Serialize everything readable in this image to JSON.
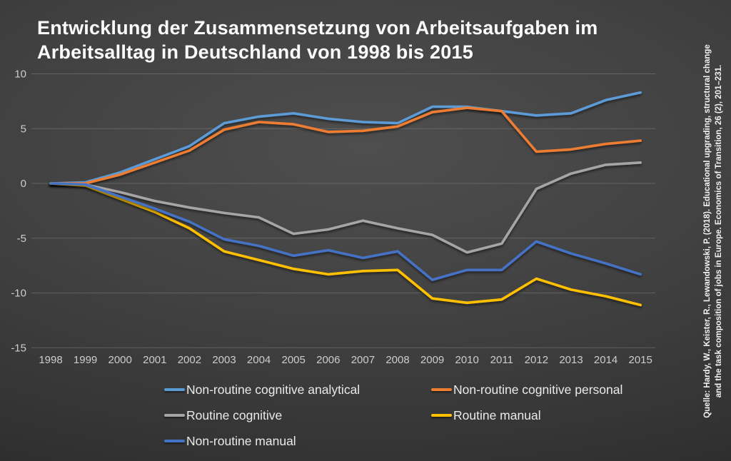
{
  "title": {
    "line1": "Entwicklung der Zusammensetzung von Arbeitsaufgaben im",
    "line2": "Arbeitsalltag in Deutschland von 1998 bis 2015"
  },
  "source": {
    "line1": "Quelle: Hardy, W., Keister, R., Lewandowski, P. (2018). Educational upgrading, structural change",
    "line2": "and the task composition of jobs in Europe. Economics of Transition, 26 (2), 201–231."
  },
  "colors": {
    "background_center": "#4e4e4e",
    "background_edge": "#242424",
    "gridline": "#8a8a8a",
    "tick_label": "#cdcdcd",
    "title_text": "#fbfbfb",
    "legend_text": "#eaeaea"
  },
  "chart_data": {
    "type": "line",
    "x": [
      1998,
      1999,
      2000,
      2001,
      2002,
      2003,
      2004,
      2005,
      2006,
      2007,
      2008,
      2009,
      2010,
      2011,
      2012,
      2013,
      2014,
      2015
    ],
    "series": [
      {
        "name": "Non-routine cognitive analytical",
        "color": "#5B9BD5",
        "values": [
          0.0,
          0.1,
          1.0,
          2.2,
          3.4,
          5.5,
          6.1,
          6.4,
          5.9,
          5.6,
          5.5,
          7.0,
          7.0,
          6.6,
          6.2,
          6.4,
          7.6,
          8.3
        ]
      },
      {
        "name": "Non-routine cognitive personal",
        "color": "#ED7D31",
        "values": [
          0.0,
          0.0,
          0.8,
          1.9,
          3.0,
          4.9,
          5.6,
          5.4,
          4.7,
          4.8,
          5.2,
          6.5,
          6.9,
          6.6,
          2.9,
          3.1,
          3.6,
          3.9
        ]
      },
      {
        "name": "Routine cognitive",
        "color": "#A5A5A5",
        "values": [
          0.0,
          -0.1,
          -0.8,
          -1.6,
          -2.2,
          -2.7,
          -3.1,
          -4.6,
          -4.2,
          -3.4,
          -4.1,
          -4.7,
          -6.3,
          -5.5,
          -0.5,
          0.9,
          1.7,
          1.9
        ]
      },
      {
        "name": "Routine manual",
        "color": "#FFC000",
        "values": [
          0.0,
          -0.2,
          -1.4,
          -2.6,
          -4.1,
          -6.2,
          -7.0,
          -7.8,
          -8.3,
          -8.0,
          -7.9,
          -10.5,
          -10.9,
          -10.6,
          -8.7,
          -9.7,
          -10.3,
          -11.1
        ]
      },
      {
        "name": "Non-routine manual",
        "color": "#4472C4",
        "values": [
          0.0,
          -0.1,
          -1.2,
          -2.3,
          -3.5,
          -5.1,
          -5.7,
          -6.6,
          -6.1,
          -6.8,
          -6.2,
          -8.8,
          -7.9,
          -7.9,
          -5.3,
          -6.4,
          -7.3,
          -8.3
        ]
      }
    ],
    "ylim": [
      -15,
      10
    ],
    "yticks": [
      10,
      5,
      0,
      -5,
      -10,
      -15
    ],
    "grid": true,
    "legend_position": "bottom",
    "xlabel": "",
    "ylabel": ""
  }
}
